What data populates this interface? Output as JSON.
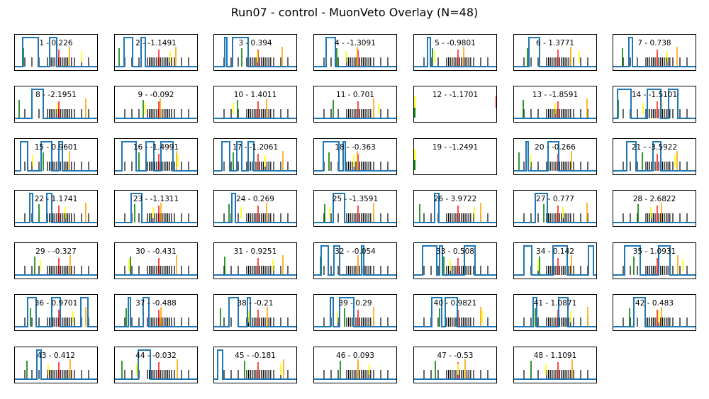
{
  "title": "Run07 - control - MuonVeto Overlay (N=48)",
  "colors": {
    "trace": "#1f77b4",
    "ticks": "#000000",
    "center_marker": "#ff0000",
    "left_marker": "#008000",
    "mid_marker": "#ffff00",
    "right_marker": "#ffa500"
  },
  "chart_data": {
    "type": "line",
    "layout": "grid of 48 small-multiple panels, 7 columns x 7 rows",
    "grid": false,
    "axes_visible": false,
    "panels": [
      {
        "label": "1 - 0.226"
      },
      {
        "label": "2 - -1.1491"
      },
      {
        "label": "3 - 0.394"
      },
      {
        "label": "4 - -1.3091"
      },
      {
        "label": "5 - -0.9801"
      },
      {
        "label": "6 - 1.3771"
      },
      {
        "label": "7 - 0.738"
      },
      {
        "label": "8 - -2.1951"
      },
      {
        "label": "9 - -0.092"
      },
      {
        "label": "10 - 1.4011"
      },
      {
        "label": "11 - 0.701"
      },
      {
        "label": "12 - -1.1701"
      },
      {
        "label": "13 - -1.8591"
      },
      {
        "label": "14 - -1.5101"
      },
      {
        "label": "15 - 0.9601"
      },
      {
        "label": "16 - -1.4991"
      },
      {
        "label": "17 - -1.2061"
      },
      {
        "label": "18 - -0.363"
      },
      {
        "label": "19 - -1.2491"
      },
      {
        "label": "20 - -0.266"
      },
      {
        "label": "21 - -3.5922"
      },
      {
        "label": "22 - 1.1741"
      },
      {
        "label": "23 - -1.1311"
      },
      {
        "label": "24 - 0.269"
      },
      {
        "label": "25 - -1.3591"
      },
      {
        "label": "26 - 3.9722"
      },
      {
        "label": "27 - 0.777"
      },
      {
        "label": "28 - 2.6822"
      },
      {
        "label": "29 - -0.327"
      },
      {
        "label": "30 - -0.431"
      },
      {
        "label": "31 - 0.9251"
      },
      {
        "label": "32 - -0.054"
      },
      {
        "label": "33 - 0.508"
      },
      {
        "label": "34 - 0.142"
      },
      {
        "label": "35 - 1.0931"
      },
      {
        "label": "36 - 0.9701"
      },
      {
        "label": "37 - -0.488"
      },
      {
        "label": "38 - -0.21"
      },
      {
        "label": "39 - 0.29"
      },
      {
        "label": "40 - 0.9821"
      },
      {
        "label": "41 - 1.0871"
      },
      {
        "label": "42 - 0.483"
      },
      {
        "label": "43 - 0.412"
      },
      {
        "label": "44 - -0.032"
      },
      {
        "label": "45 - -0.181"
      },
      {
        "label": "46 - 0.093"
      },
      {
        "label": "47 - -0.53"
      },
      {
        "label": "48 - 1.1091"
      }
    ]
  }
}
